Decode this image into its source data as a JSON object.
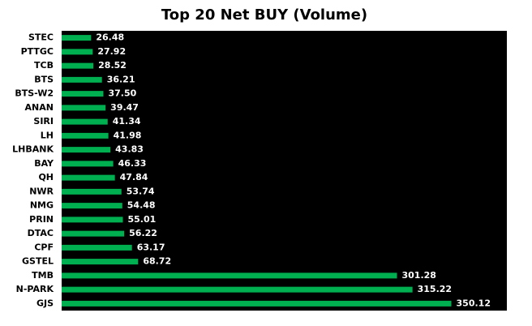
{
  "chart_data": {
    "type": "bar",
    "orientation": "horizontal",
    "title": "Top 20 Net BUY (Volume)",
    "categories": [
      "STEC",
      "PTTGC",
      "TCB",
      "BTS",
      "BTS-W2",
      "ANAN",
      "SIRI",
      "LH",
      "LHBANK",
      "BAY",
      "QH",
      "NWR",
      "NMG",
      "PRIN",
      "DTAC",
      "CPF",
      "GSTEL",
      "TMB",
      "N-PARK",
      "GJS"
    ],
    "values": [
      26.48,
      27.92,
      28.52,
      36.21,
      37.5,
      39.47,
      41.34,
      41.98,
      43.83,
      46.33,
      47.84,
      53.74,
      54.48,
      55.01,
      56.22,
      63.17,
      68.72,
      301.28,
      315.22,
      350.12
    ],
    "value_labels": [
      "26.48",
      "27.92",
      "28.52",
      "36.21",
      "37.50",
      "39.47",
      "41.34",
      "41.98",
      "43.83",
      "46.33",
      "47.84",
      "53.74",
      "54.48",
      "55.01",
      "56.22",
      "63.17",
      "68.72",
      "301.28",
      "315.22",
      "350.12"
    ],
    "color": "#00b050",
    "background": "#000000",
    "xlim": [
      0,
      400
    ]
  }
}
